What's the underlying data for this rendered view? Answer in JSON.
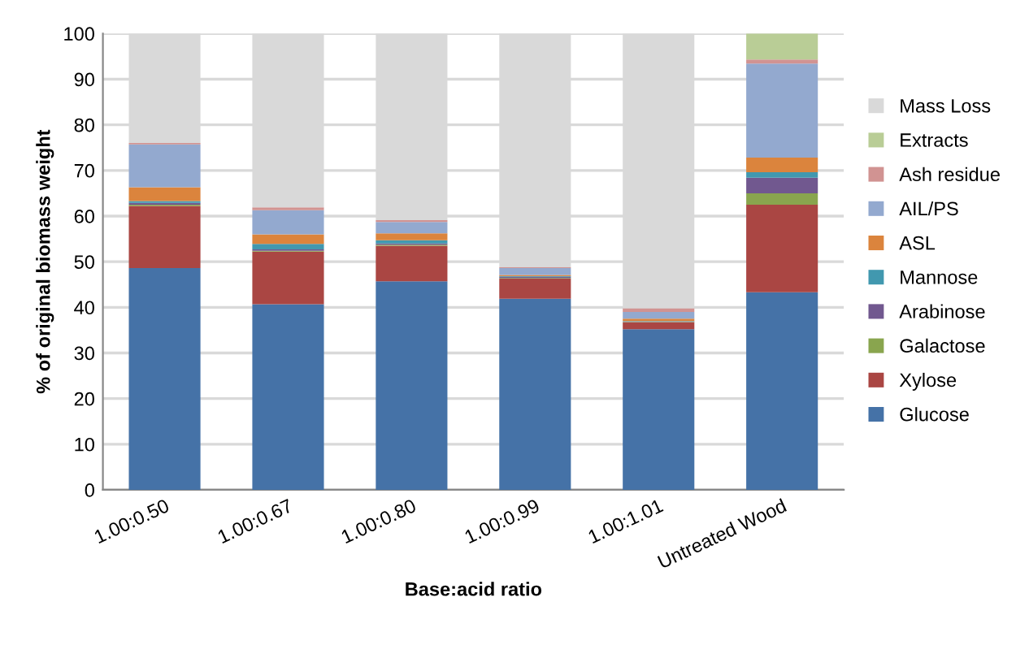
{
  "chart_data": {
    "type": "bar",
    "stacked": true,
    "xlabel": "Base:acid ratio",
    "ylabel": "% of original biomass weight",
    "categories": [
      "1.00:0.50",
      "1.00:0.67",
      "1.00:0.80",
      "1.00:0.99",
      "1.00:1.01",
      "Untreated Wood"
    ],
    "ylim": [
      0,
      100
    ],
    "yticks": [
      0,
      10,
      20,
      30,
      40,
      50,
      60,
      70,
      80,
      90,
      100
    ],
    "grid": "y",
    "legend": "right",
    "series": [
      {
        "name": "Glucose",
        "color": "#4572a7",
        "values": [
          48.6,
          40.7,
          45.7,
          41.9,
          35.2,
          43.3
        ]
      },
      {
        "name": "Xylose",
        "color": "#aa4643",
        "values": [
          13.6,
          11.5,
          7.8,
          4.4,
          1.5,
          19.2
        ]
      },
      {
        "name": "Galactose",
        "color": "#89a54e",
        "values": [
          0.3,
          0.2,
          0.2,
          0.1,
          0.1,
          2.5
        ]
      },
      {
        "name": "Arabinose",
        "color": "#71588f",
        "values": [
          0.4,
          0.3,
          0.3,
          0.3,
          0.1,
          3.4
        ]
      },
      {
        "name": "Mannose",
        "color": "#4198af",
        "values": [
          0.4,
          1.2,
          0.7,
          0.1,
          0.1,
          1.2
        ]
      },
      {
        "name": "ASL",
        "color": "#db843d",
        "values": [
          3.0,
          2.1,
          1.5,
          0.3,
          0.5,
          3.2
        ]
      },
      {
        "name": "AIL/PS",
        "color": "#93a9cf",
        "values": [
          9.4,
          5.3,
          2.5,
          1.5,
          1.5,
          20.6
        ]
      },
      {
        "name": "Ash residue",
        "color": "#d19392",
        "values": [
          0.3,
          0.6,
          0.4,
          0.2,
          0.8,
          0.9
        ]
      },
      {
        "name": "Extracts",
        "color": "#b9cd96",
        "values": [
          0,
          0,
          0,
          0,
          0,
          5.7
        ]
      },
      {
        "name": "Mass Loss",
        "color": "#d9d9d9",
        "values": [
          24.0,
          38.1,
          40.9,
          51.2,
          60.2,
          0
        ]
      }
    ]
  }
}
